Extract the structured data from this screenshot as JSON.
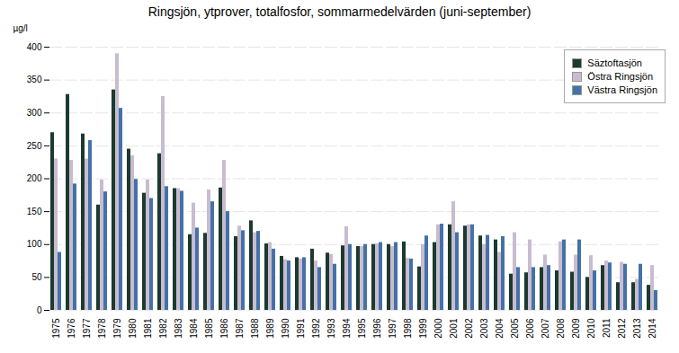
{
  "chart_data": {
    "type": "bar",
    "title": "Ringsjön, ytprover, totalfosfor, sommarmedelvärden (juni-september)",
    "ylabel": "µg/l",
    "categories": [
      "1975",
      "1976",
      "1977",
      "1978",
      "1979",
      "1980",
      "1981",
      "1982",
      "1983",
      "1984",
      "1985",
      "1986",
      "1987",
      "1988",
      "1989",
      "1990",
      "1991",
      "1992",
      "1993",
      "1994",
      "1995",
      "1996",
      "1997",
      "1998",
      "1999",
      "2000",
      "2001",
      "2002",
      "2003",
      "2004",
      "2005",
      "2006",
      "2007",
      "2008",
      "2009",
      "2010",
      "2011",
      "2012",
      "2013",
      "2014"
    ],
    "series": [
      {
        "name": "Säztoftasjön",
        "color": "#1c3a2e",
        "values": [
          270,
          328,
          268,
          160,
          335,
          245,
          178,
          238,
          185,
          115,
          117,
          186,
          112,
          136,
          101,
          82,
          80,
          93,
          87,
          98,
          97,
          100,
          100,
          104,
          66,
          103,
          130,
          128,
          113,
          107,
          55,
          57,
          65,
          60,
          58,
          50,
          68,
          42,
          42,
          38
        ]
      },
      {
        "name": "Östra Ringsjön",
        "color": "#c8bcd0",
        "values": [
          230,
          228,
          230,
          198,
          390,
          235,
          198,
          325,
          185,
          163,
          183,
          228,
          128,
          118,
          103,
          77,
          78,
          75,
          85,
          127,
          97,
          101,
          97,
          79,
          100,
          130,
          165,
          130,
          100,
          88,
          118,
          107,
          84,
          104,
          84,
          83,
          75,
          73,
          47,
          68
        ]
      },
      {
        "name": "Västra Ringsjön",
        "color": "#4472a8",
        "values": [
          88,
          192,
          258,
          180,
          307,
          199,
          170,
          188,
          181,
          125,
          165,
          150,
          121,
          120,
          93,
          75,
          80,
          65,
          70,
          100,
          100,
          103,
          103,
          78,
          113,
          131,
          118,
          130,
          114,
          112,
          65,
          65,
          68,
          107,
          107,
          60,
          72,
          70,
          70,
          30
        ]
      }
    ],
    "ylim": [
      0,
      400
    ],
    "yticks": [
      0,
      50,
      100,
      150,
      200,
      250,
      300,
      350,
      400
    ],
    "grid": true,
    "legend": "upper right"
  }
}
